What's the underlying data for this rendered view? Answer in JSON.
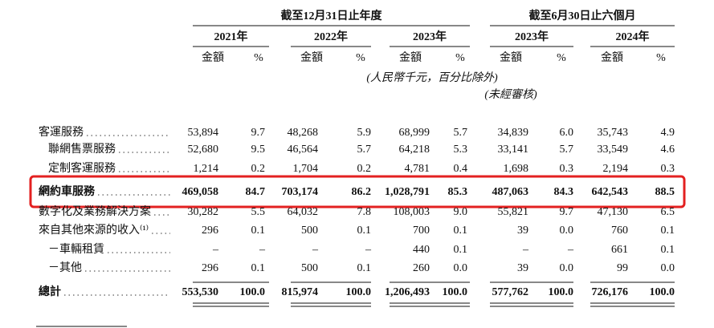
{
  "header": {
    "groups": [
      "截至12月31日止年度",
      "截至6月30日止六個月"
    ],
    "years": [
      "2021年",
      "2022年",
      "2023年",
      "2023年",
      "2024年"
    ],
    "subheaders": [
      "金額",
      "%",
      "金額",
      "%",
      "金額",
      "%",
      "金額",
      "%",
      "金額",
      "%"
    ],
    "unit_note": "(人民幣千元，百分比除外)",
    "audit_note": "(未經審核)"
  },
  "table": {
    "rows": [
      {
        "label": "客運服務",
        "cells": [
          "53,894",
          "9.7",
          "48,268",
          "5.9",
          "68,999",
          "5.7",
          "34,839",
          "6.0",
          "35,743",
          "4.9"
        ]
      },
      {
        "label": "聯網售票服務",
        "cells": [
          "52,680",
          "9.5",
          "46,564",
          "5.7",
          "64,218",
          "5.3",
          "33,141",
          "5.7",
          "33,549",
          "4.6"
        ]
      },
      {
        "label": "定制客運服務",
        "cells": [
          "1,214",
          "0.2",
          "1,704",
          "0.2",
          "4,781",
          "0.4",
          "1,698",
          "0.3",
          "2,194",
          "0.3"
        ]
      },
      {
        "label": "網約車服務",
        "cells": [
          "469,058",
          "84.7",
          "703,174",
          "86.2",
          "1,028,791",
          "85.3",
          "487,063",
          "84.3",
          "642,543",
          "88.5"
        ]
      },
      {
        "label": "數字化及業務解決方案",
        "cells": [
          "30,282",
          "5.5",
          "64,032",
          "7.8",
          "108,003",
          "9.0",
          "55,821",
          "9.7",
          "47,130",
          "6.5"
        ]
      },
      {
        "label": "來自其他來源的收入⁽¹⁾",
        "cells": [
          "296",
          "0.1",
          "500",
          "0.1",
          "700",
          "0.1",
          "39",
          "0.0",
          "760",
          "0.1"
        ]
      },
      {
        "label": "－車輛租賃",
        "cells": [
          "–",
          "–",
          "–",
          "–",
          "440",
          "0.1",
          "–",
          "–",
          "661",
          "0.1"
        ]
      },
      {
        "label": "－其他",
        "cells": [
          "296",
          "0.1",
          "500",
          "0.1",
          "260",
          "0.0",
          "39",
          "0.0",
          "99",
          "0.0"
        ]
      },
      {
        "label": "總計",
        "cells": [
          "553,530",
          "100.0",
          "815,974",
          "100.0",
          "1,206,493",
          "100.0",
          "577,762",
          "100.0",
          "726,176",
          "100.0"
        ]
      }
    ]
  }
}
